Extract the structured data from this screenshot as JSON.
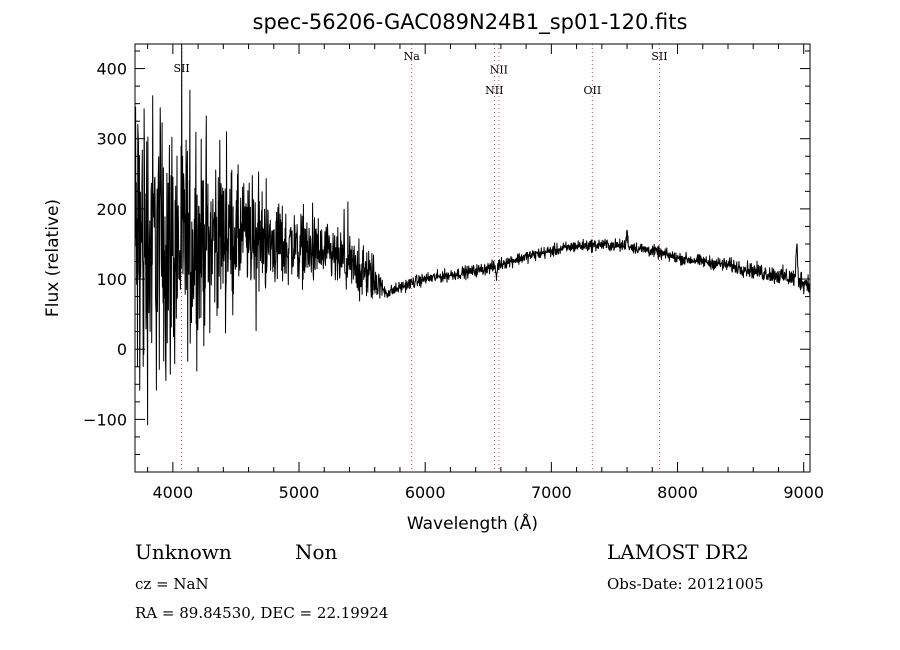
{
  "chart_data": {
    "type": "line",
    "title": "spec-56206-GAC089N24B1_sp01-120.fits",
    "xlabel": "Wavelength (Å)",
    "ylabel": "Flux (relative)",
    "xlim": [
      3700,
      9050
    ],
    "ylim": [
      -175,
      435
    ],
    "xticks": [
      4000,
      5000,
      6000,
      7000,
      8000,
      9000
    ],
    "xtick_labels": [
      "4000",
      "5000",
      "6000",
      "7000",
      "8000",
      "9000"
    ],
    "yticks": [
      -100,
      0,
      100,
      200,
      300,
      400
    ],
    "ytick_labels": [
      "−100",
      "0",
      "100",
      "200",
      "300",
      "400"
    ],
    "spectrum_anchors": {
      "wavelength": [
        3700,
        3800,
        3900,
        4000,
        4200,
        4400,
        4600,
        4800,
        5000,
        5200,
        5400,
        5600,
        5650,
        5700,
        5800,
        5900,
        6000,
        6200,
        6400,
        6560,
        6600,
        6800,
        7000,
        7200,
        7400,
        7600,
        7800,
        8000,
        8200,
        8400,
        8600,
        8800,
        8950,
        9050
      ],
      "flux": [
        140,
        150,
        150,
        145,
        150,
        165,
        160,
        150,
        145,
        135,
        120,
        100,
        88,
        80,
        88,
        95,
        100,
        106,
        112,
        118,
        122,
        132,
        140,
        147,
        149,
        147,
        140,
        130,
        125,
        120,
        112,
        105,
        100,
        92
      ],
      "noise": [
        190,
        160,
        140,
        125,
        95,
        70,
        55,
        42,
        35,
        30,
        28,
        25,
        10,
        6,
        6,
        6,
        6,
        6,
        6,
        6,
        6,
        6,
        6,
        6,
        6,
        6,
        6,
        6,
        6,
        7,
        8,
        9,
        10,
        12
      ]
    },
    "lines": [
      {
        "name": "SII",
        "wavelength": 4069,
        "label_y": 395
      },
      {
        "name": "Na",
        "wavelength": 5893,
        "label_y": 412
      },
      {
        "name": "NII",
        "wavelength": 6548,
        "label_y": 364
      },
      {
        "name": "NII",
        "wavelength": 6584,
        "label_y": 393
      },
      {
        "name": "OII",
        "wavelength": 7325,
        "label_y": 364
      },
      {
        "name": "SII",
        "wavelength": 7857,
        "label_y": 412
      }
    ],
    "features": [
      {
        "wavelength": 7600,
        "flux": 170
      },
      {
        "wavelength": 8945,
        "flux": 152
      }
    ]
  },
  "footer": {
    "classification": "Unknown",
    "subclass": "Non",
    "survey": "LAMOST DR2",
    "cz": "cz = NaN",
    "obs_date": "Obs-Date: 20121005",
    "coords": "RA =   89.84530, DEC =   22.19924"
  }
}
